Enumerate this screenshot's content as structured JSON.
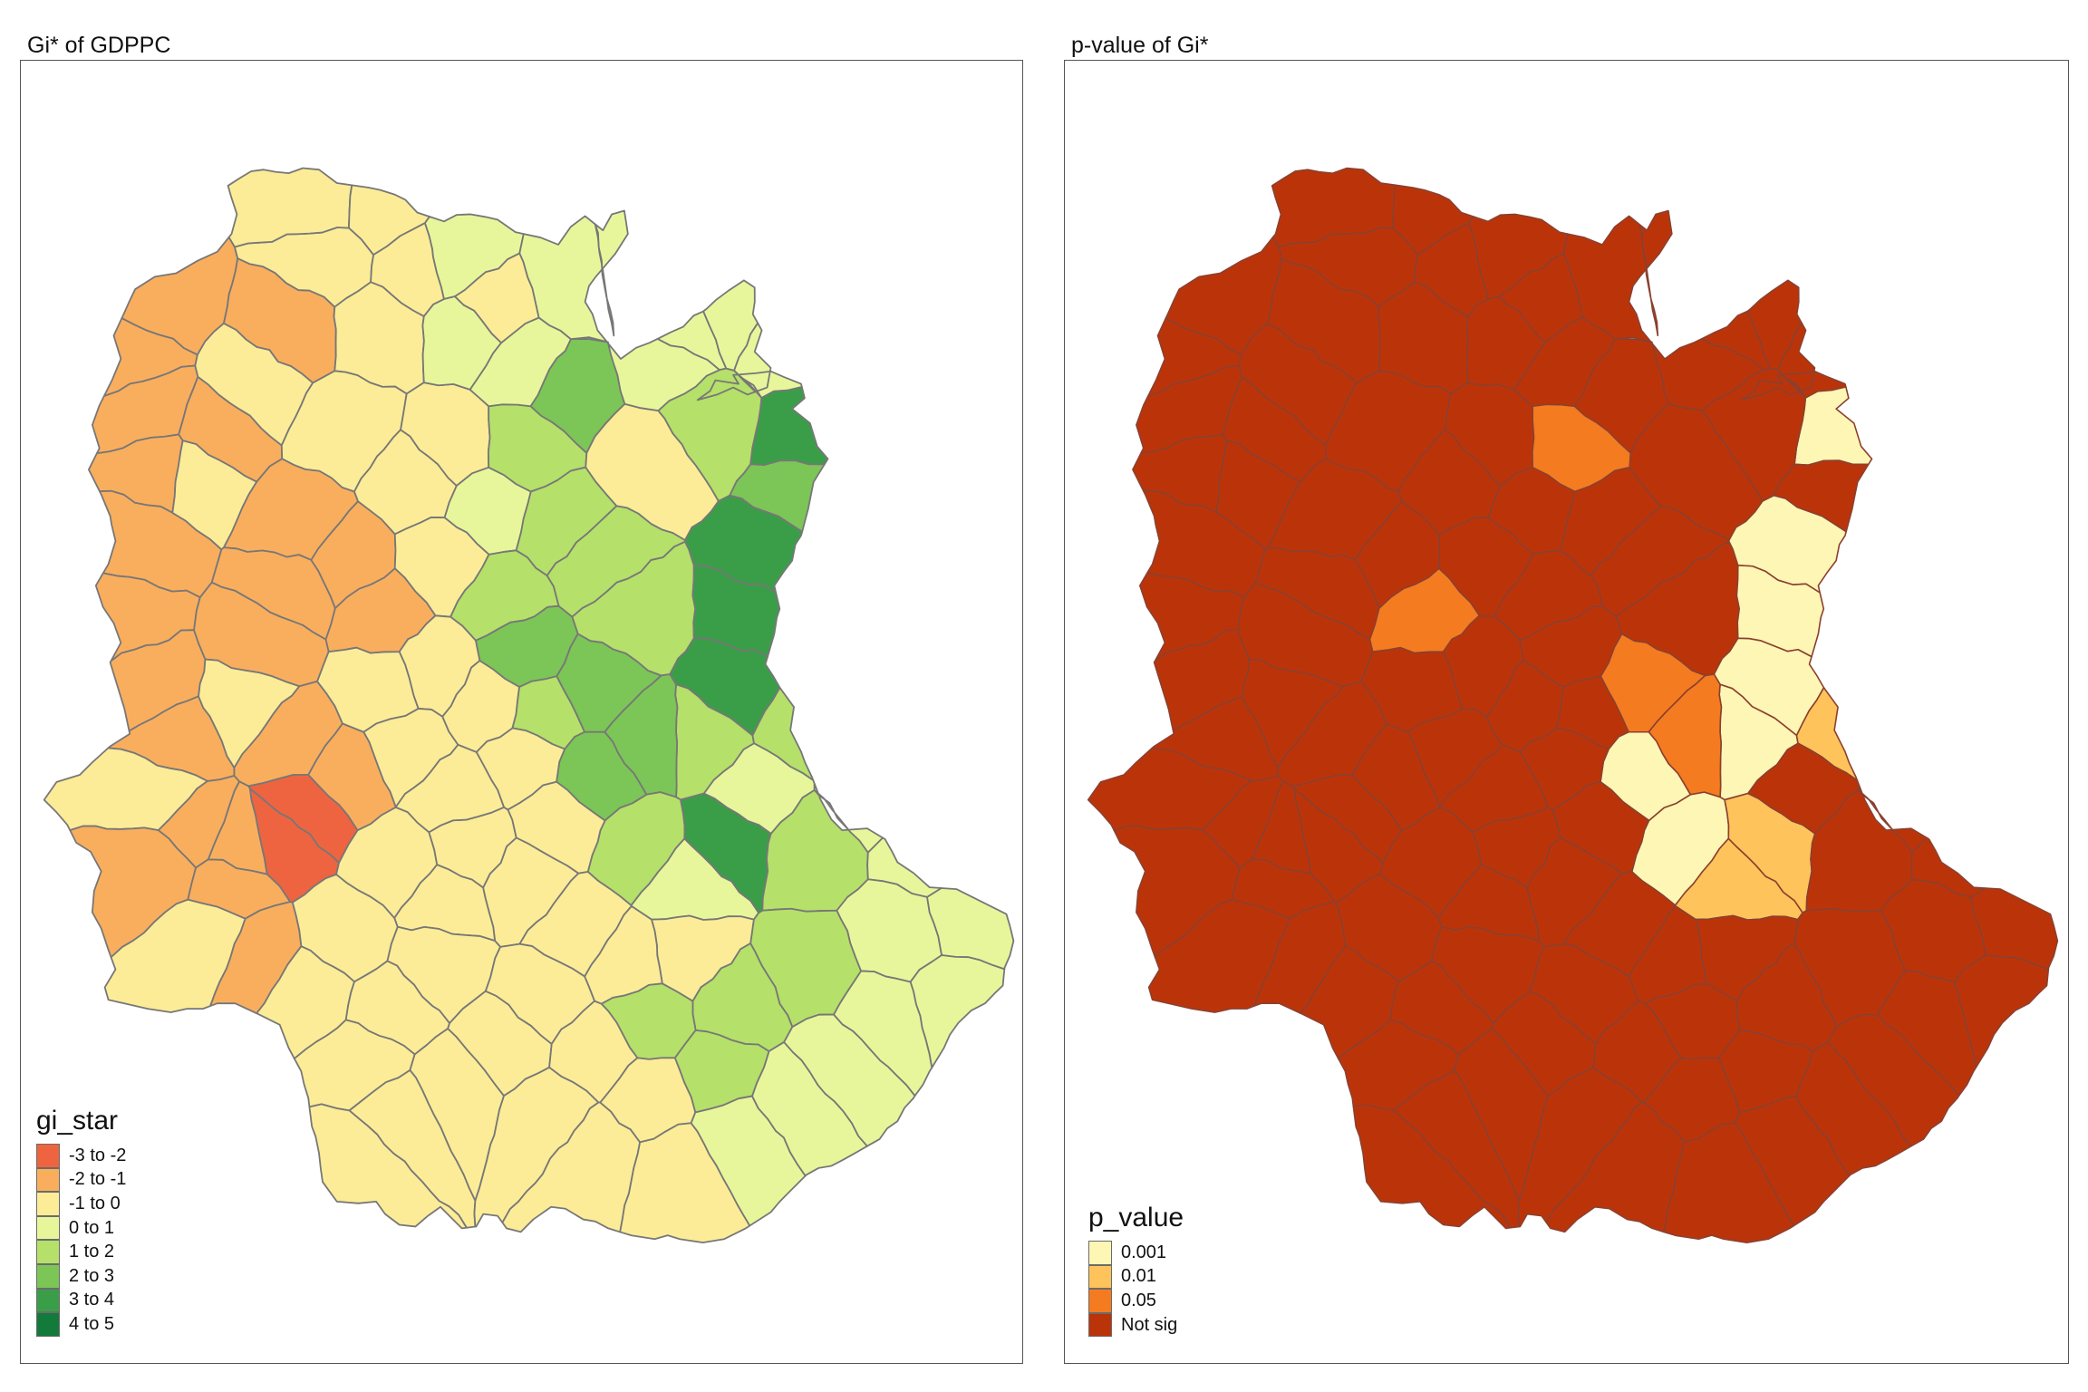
{
  "maps": [
    {
      "title": "Gi* of GDPPC",
      "legend": {
        "title": "gi_star",
        "items": [
          {
            "label": "-3 to -2",
            "color": "#ee6440"
          },
          {
            "label": "-2 to -1",
            "color": "#f9ae5e"
          },
          {
            "label": "-1 to 0",
            "color": "#fcec97"
          },
          {
            "label": "0 to 1",
            "color": "#e8f69b"
          },
          {
            "label": "1 to 2",
            "color": "#b5e06a"
          },
          {
            "label": "2 to 3",
            "color": "#7cc557"
          },
          {
            "label": "3 to 4",
            "color": "#3a9e49"
          },
          {
            "label": "4 to 5",
            "color": "#127a3a"
          }
        ]
      }
    },
    {
      "title": "p-value of Gi*",
      "legend": {
        "title": "p_value",
        "items": [
          {
            "label": "0.001",
            "color": "#fef6b4"
          },
          {
            "label": "0.01",
            "color": "#fec35a"
          },
          {
            "label": "0.05",
            "color": "#f47b20"
          },
          {
            "label": "Not sig",
            "color": "#bb3409"
          }
        ]
      }
    }
  ]
}
